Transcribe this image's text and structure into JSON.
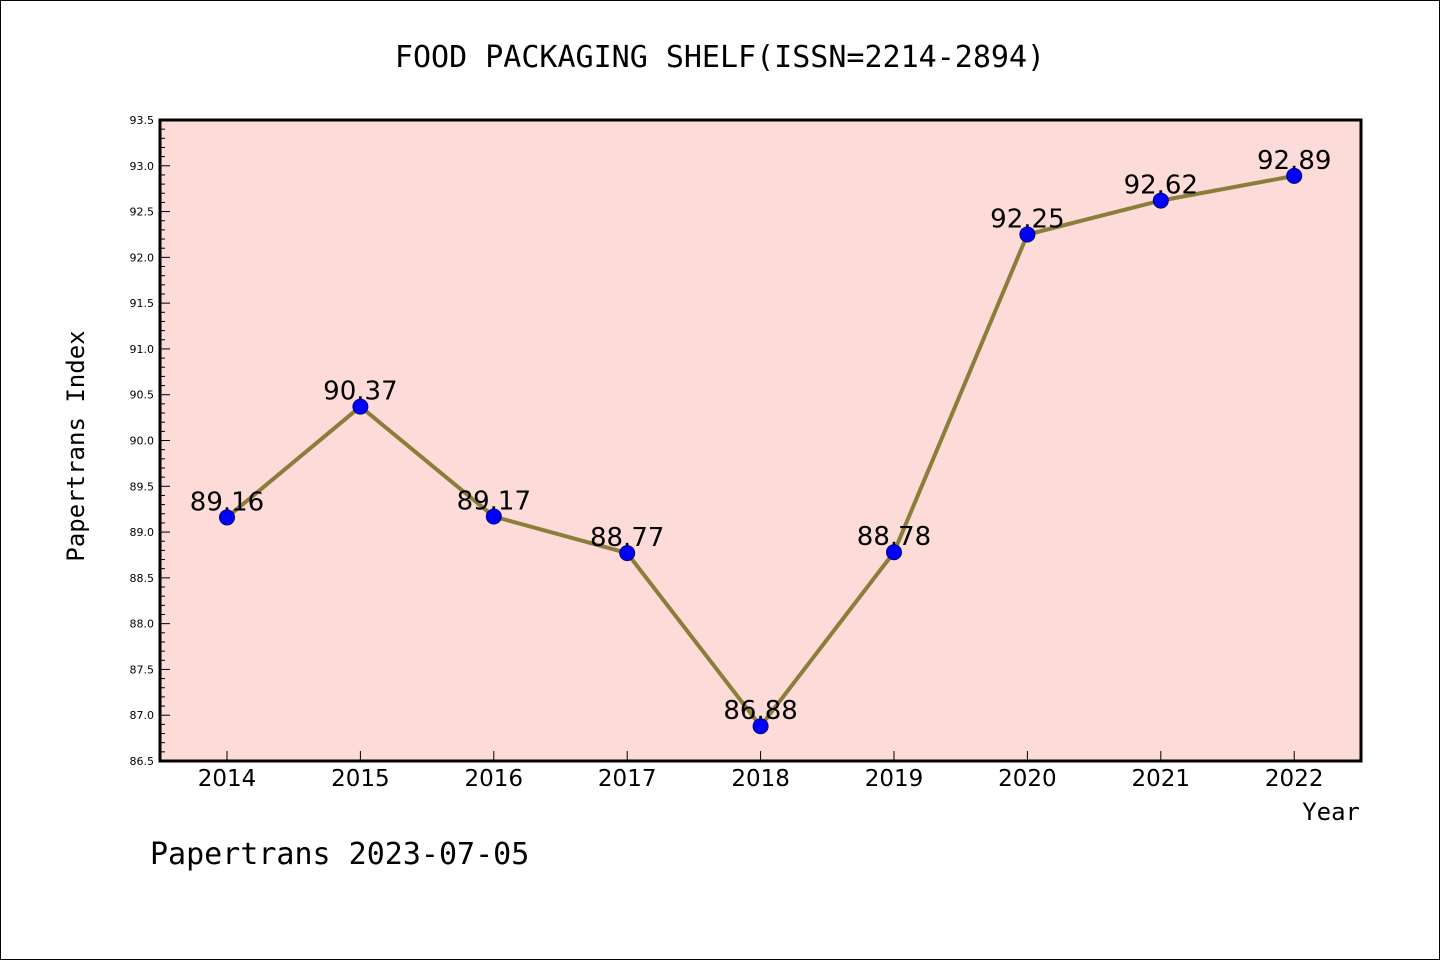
{
  "chart_data": {
    "type": "line",
    "title": "FOOD PACKAGING SHELF(ISSN=2214-2894)",
    "xlabel": "Year",
    "ylabel": "Papertrans Index",
    "categories": [
      "2014",
      "2015",
      "2016",
      "2017",
      "2018",
      "2019",
      "2020",
      "2021",
      "2022"
    ],
    "series": [
      {
        "values": [
          89.16,
          90.37,
          89.17,
          88.77,
          86.88,
          88.78,
          92.25,
          92.62,
          92.89
        ],
        "labels": [
          "89.16",
          "90.37",
          "89.17",
          "88.77",
          "86.88",
          "88.78",
          "92.25",
          "92.62",
          "92.89"
        ]
      }
    ],
    "ylim": [
      86.5,
      93.5
    ],
    "yticks": [
      "86.5",
      "87.0",
      "87.5",
      "88.0",
      "88.5",
      "89.0",
      "89.5",
      "90.0",
      "90.5",
      "91.0",
      "91.5",
      "92.0",
      "92.5",
      "93.0",
      "93.5"
    ],
    "grid": false,
    "colors": {
      "plot_background": "#fddbd8",
      "line": "#8b7d3a",
      "marker_fill": "#0000ff",
      "marker_stroke": "#00007a",
      "axis": "#000000"
    }
  },
  "footer": {
    "text": "Papertrans 2023-07-05"
  }
}
